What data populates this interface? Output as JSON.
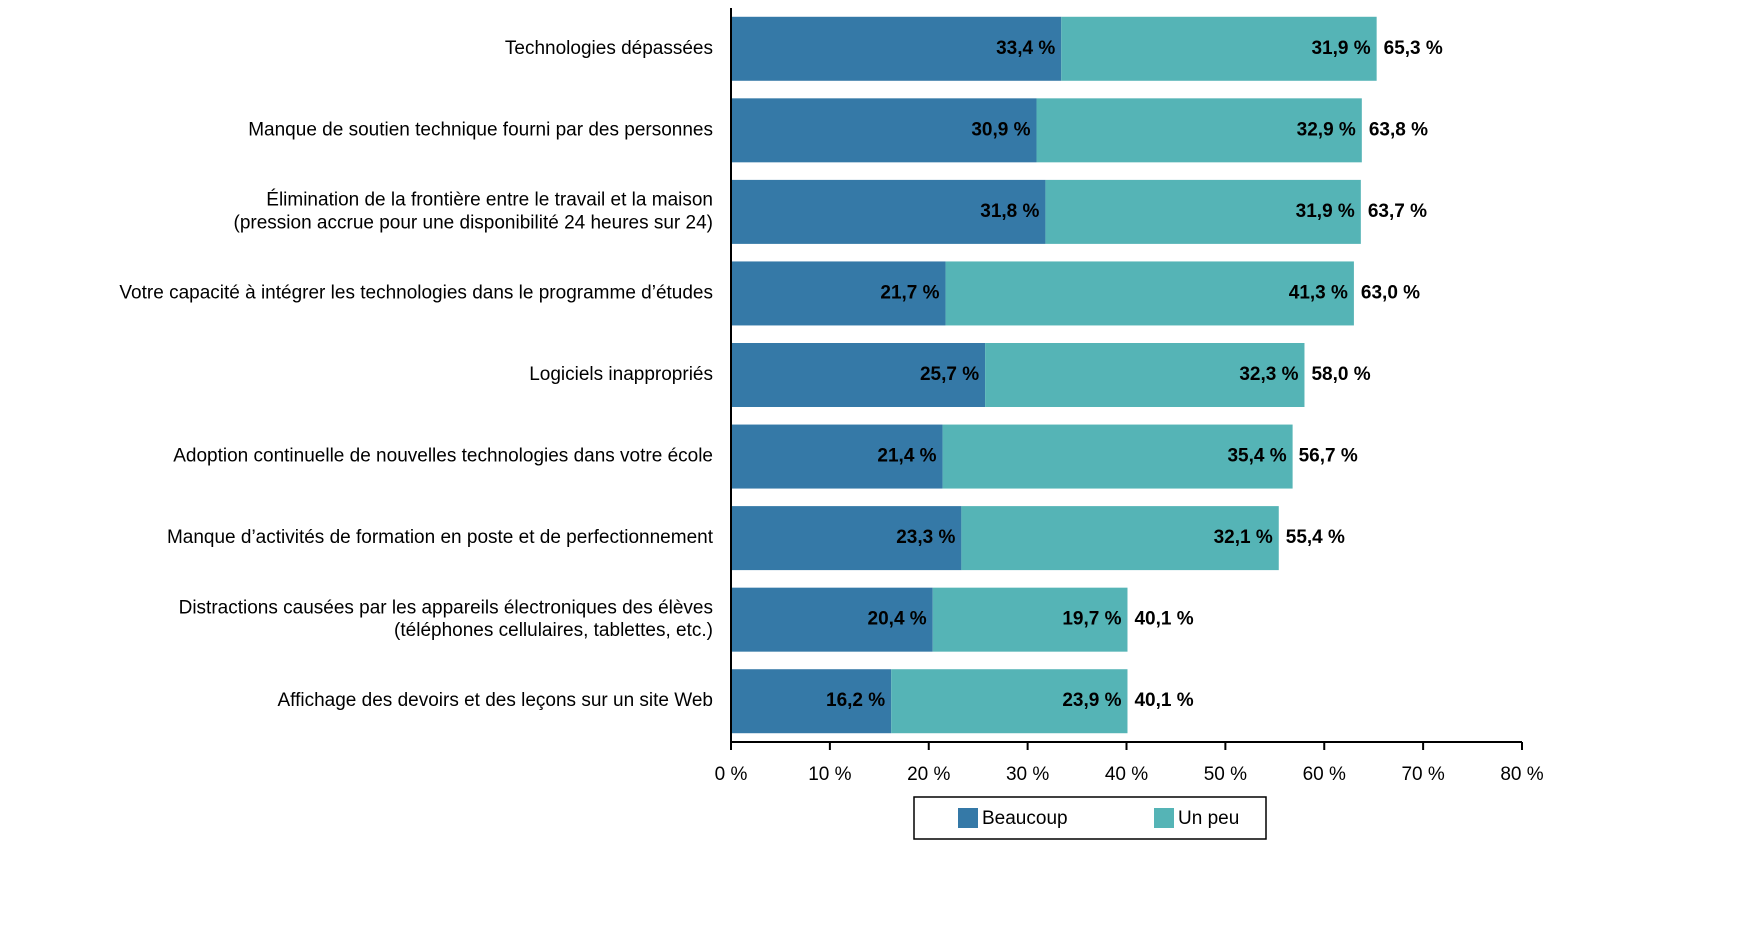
{
  "chart_data": {
    "type": "stacked_barh",
    "categories": [
      "Technologies dépassées",
      "Manque de soutien technique fourni par des personnes",
      "Élimination de la frontière entre le travail et la maison\n(pression accrue pour une disponibilité 24 heures sur 24)",
      "Votre capacité à intégrer les technologies dans le programme d’études",
      "Logiciels inappropriés",
      "Adoption continuelle de nouvelles technologies dans votre école",
      "Manque d’activités de formation en poste et de perfectionnement",
      "Distractions causées par les appareils électroniques des élèves\n(téléphones cellulaires, tablettes, etc.)",
      "Affichage des devoirs et des leçons sur un site Web"
    ],
    "series": [
      {
        "name": "Beaucoup",
        "color": "#3579a7",
        "values": [
          33.4,
          30.9,
          31.8,
          21.7,
          25.7,
          21.4,
          23.3,
          20.4,
          16.2
        ],
        "value_labels": [
          "33,4 %",
          "30,9 %",
          "31,8 %",
          "21,7 %",
          "25,7 %",
          "21,4 %",
          "23,3 %",
          "20,4 %",
          "16,2 %"
        ]
      },
      {
        "name": "Un peu",
        "color": "#55b4b6",
        "values": [
          31.9,
          32.9,
          31.9,
          41.3,
          32.3,
          35.4,
          32.1,
          19.7,
          23.9
        ],
        "value_labels": [
          "31,9 %",
          "32,9 %",
          "31,9 %",
          "41,3 %",
          "32,3 %",
          "35,4 %",
          "32,1 %",
          "19,7 %",
          "23,9 %"
        ]
      }
    ],
    "totals": [
      65.3,
      63.8,
      63.7,
      63.0,
      58.0,
      56.7,
      55.4,
      40.1,
      40.1
    ],
    "total_labels": [
      "65,3 %",
      "63,8 %",
      "63,7 %",
      "63,0 %",
      "58,0 %",
      "56,7 %",
      "55,4 %",
      "40,1 %",
      "40,1 %"
    ],
    "xlim": [
      0,
      80
    ],
    "xticks": [
      {
        "value": 0,
        "label": "0 %"
      },
      {
        "value": 10,
        "label": "10 %"
      },
      {
        "value": 20,
        "label": "20 %"
      },
      {
        "value": 30,
        "label": "30 %"
      },
      {
        "value": 40,
        "label": "40 %"
      },
      {
        "value": 50,
        "label": "50 %"
      },
      {
        "value": 60,
        "label": "60 %"
      },
      {
        "value": 70,
        "label": "70 %"
      },
      {
        "value": 80,
        "label": "80 %"
      }
    ],
    "legend": "bottom"
  }
}
